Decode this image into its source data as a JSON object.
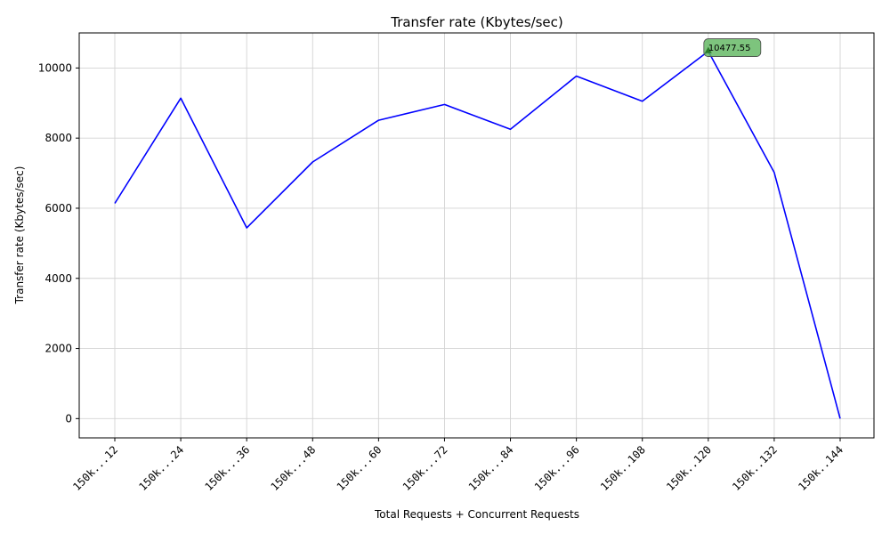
{
  "chart_data": {
    "type": "line",
    "title": "Transfer rate (Kbytes/sec)",
    "xlabel": "Total Requests + Concurrent Requests",
    "ylabel": "Transfer rate (Kbytes/sec)",
    "categories": [
      "150k...12",
      "150k...24",
      "150k...36",
      "150k...48",
      "150k...60",
      "150k...72",
      "150k...84",
      "150k...96",
      "150k..108",
      "150k..120",
      "150k..132",
      "150k..144"
    ],
    "series": [
      {
        "color": "#0000ff",
        "values": [
          6140,
          9140,
          5440,
          7320,
          8510,
          8960,
          8250,
          9770,
          9050,
          10477.55,
          7020,
          0
        ]
      }
    ],
    "ylim": [
      -550,
      11000
    ],
    "yticks": [
      0,
      2000,
      4000,
      6000,
      8000,
      10000
    ],
    "grid": true,
    "annotation": {
      "label": "10477.55",
      "category_index": 9,
      "box_color": "#5db55d",
      "marker_color": "#2a7a2a"
    }
  }
}
